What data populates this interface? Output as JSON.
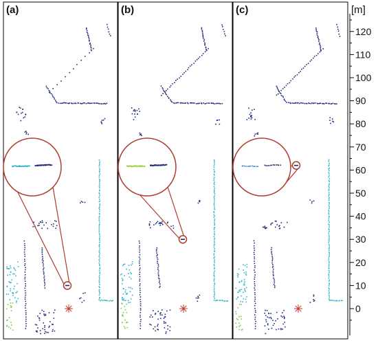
{
  "panels": [
    {
      "label": "(a)",
      "zoom_target_m": 10
    },
    {
      "label": "(b)",
      "zoom_target_m": 30
    },
    {
      "label": "(c)",
      "zoom_target_m": 62
    }
  ],
  "axis": {
    "unit": "[m]",
    "ticks": [
      0,
      10,
      20,
      30,
      40,
      50,
      60,
      70,
      80,
      90,
      100,
      110,
      120
    ],
    "range": [
      -10,
      125
    ]
  },
  "colors": {
    "frame": "#000000",
    "circle": "#b03a2e",
    "sensor": "#c0392b",
    "points_dark": "#1f2a7a",
    "points_light": "#33b5c9"
  }
}
